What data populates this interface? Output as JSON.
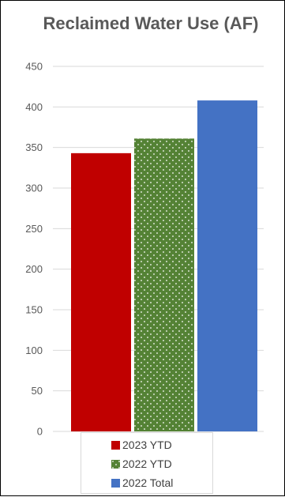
{
  "chart_data": {
    "type": "bar",
    "title": "Reclaimed Water Use (AF)",
    "categories": [
      "2023 YTD",
      "2022 YTD",
      "2022 Total"
    ],
    "values": [
      343,
      361,
      408
    ],
    "colors": [
      "#c00000",
      "#548235",
      "#4472c4"
    ],
    "patterns": [
      "solid",
      "dotted",
      "solid"
    ],
    "ylim": [
      0,
      450
    ],
    "yticks": [
      "0",
      "50",
      "100",
      "150",
      "200",
      "250",
      "300",
      "350",
      "400",
      "450"
    ],
    "grid": true,
    "legend": "bottom",
    "legend_entries": [
      "2023 YTD",
      "2022 YTD",
      "2022 Total"
    ]
  }
}
